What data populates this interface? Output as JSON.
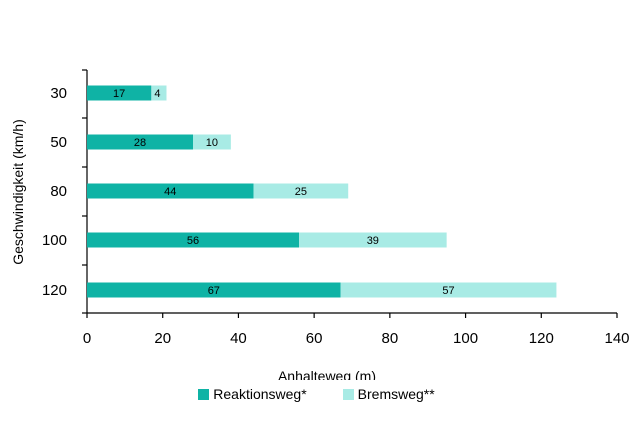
{
  "chart_data": {
    "type": "bar",
    "orientation": "horizontal",
    "stacked": true,
    "categories": [
      "30",
      "50",
      "80",
      "100",
      "120"
    ],
    "series": [
      {
        "name": "Reaktionsweg*",
        "values": [
          17,
          28,
          44,
          56,
          67
        ],
        "color": "#0fb3a5"
      },
      {
        "name": "Bremsweg**",
        "values": [
          4,
          10,
          25,
          39,
          57
        ],
        "color": "#a8ebe5"
      }
    ],
    "title": "",
    "xlabel": "Anhalteweg (m)",
    "ylabel": "Geschwindigkeit (km/h)",
    "xlim": [
      0,
      140
    ],
    "xticks": [
      "0",
      "20",
      "40",
      "60",
      "80",
      "100",
      "120",
      "140"
    ],
    "grid": false,
    "legend_position": "bottom",
    "data_labels": true
  }
}
